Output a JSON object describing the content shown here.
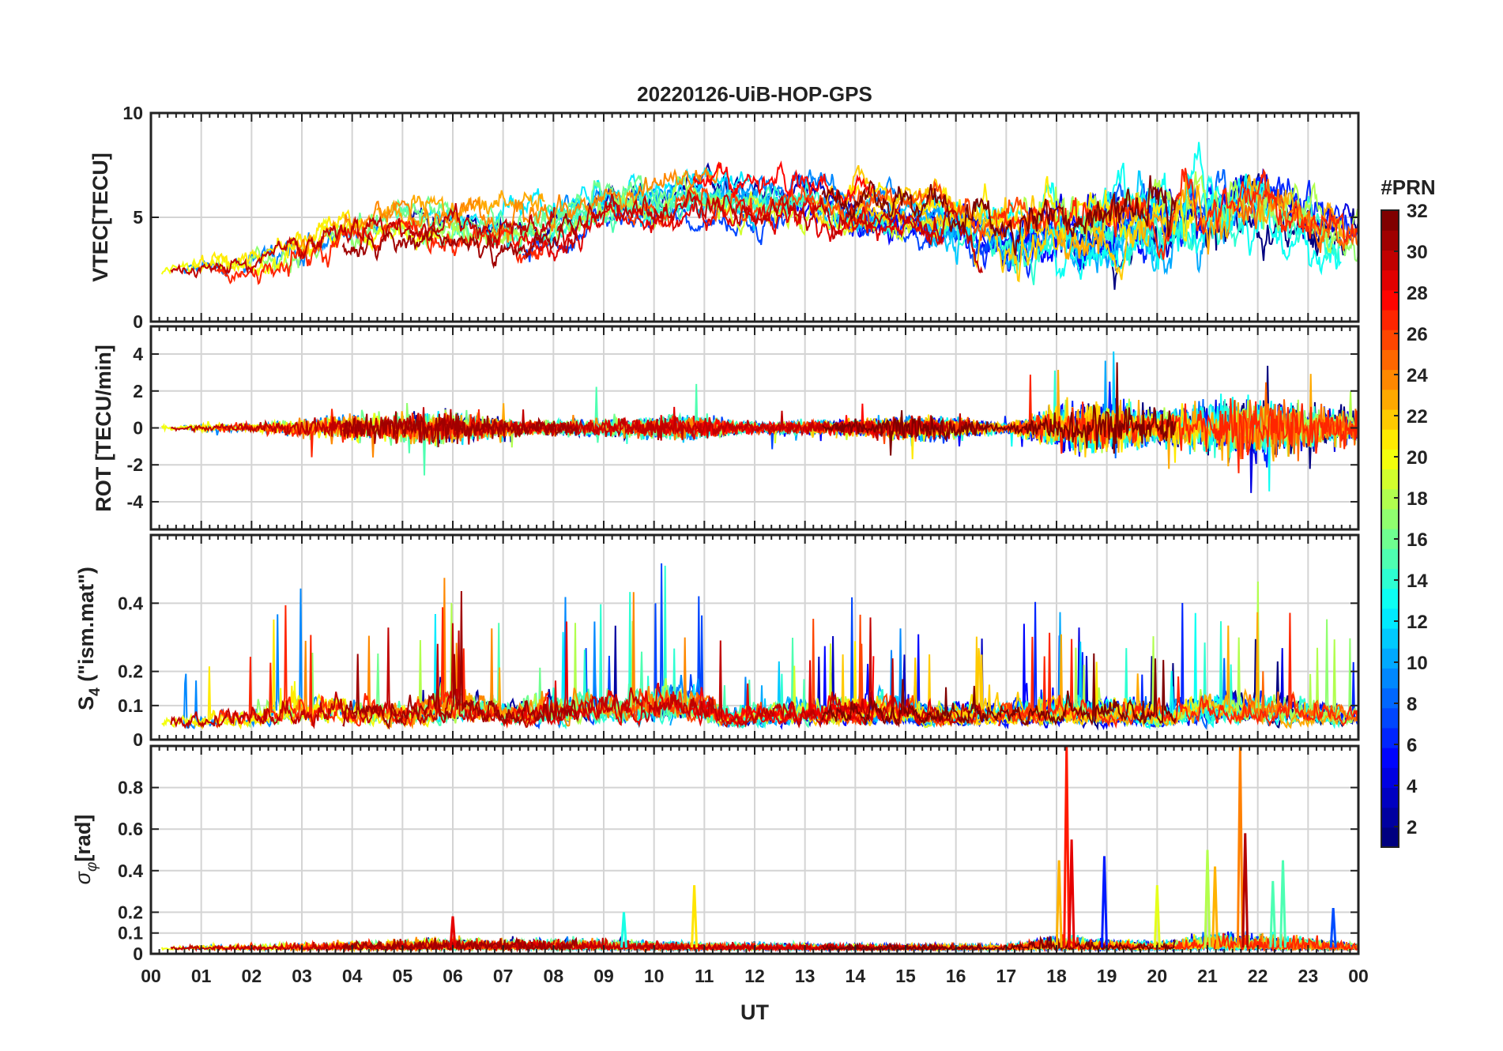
{
  "chart_data": {
    "type": "line",
    "title": "20220126-UiB-HOP-GPS",
    "xlabel": "UT",
    "x_range_hours": [
      0,
      24
    ],
    "x_tick_labels": [
      "00",
      "01",
      "02",
      "03",
      "04",
      "05",
      "06",
      "07",
      "08",
      "09",
      "10",
      "11",
      "12",
      "13",
      "14",
      "15",
      "16",
      "17",
      "18",
      "19",
      "20",
      "21",
      "22",
      "23",
      "00"
    ],
    "grid": true,
    "colorbar": {
      "title": "#PRN",
      "range": [
        1,
        32
      ],
      "tick_labels": [
        "2",
        "4",
        "6",
        "8",
        "10",
        "12",
        "14",
        "16",
        "18",
        "20",
        "22",
        "24",
        "26",
        "28",
        "30",
        "32"
      ],
      "colormap": "jet",
      "placement": "right"
    },
    "panels": [
      {
        "ylabel": "VTEC[TECU]",
        "ylim": [
          0,
          10
        ],
        "y_tick_labels": [
          "0",
          "5",
          "10"
        ],
        "envelope_center": [
          [
            0,
            2.5
          ],
          [
            2,
            2.8
          ],
          [
            3,
            3.6
          ],
          [
            4,
            4.6
          ],
          [
            5,
            4.9
          ],
          [
            6,
            4.5
          ],
          [
            7,
            4.3
          ],
          [
            8,
            4.6
          ],
          [
            9,
            5.6
          ],
          [
            10,
            5.8
          ],
          [
            11,
            6.2
          ],
          [
            12,
            6.0
          ],
          [
            13,
            6.2
          ],
          [
            14,
            5.4
          ],
          [
            15,
            5.4
          ],
          [
            16,
            5.0
          ],
          [
            17,
            4.2
          ],
          [
            18,
            4.6
          ],
          [
            19,
            4.6
          ],
          [
            20,
            4.8
          ],
          [
            21,
            5.2
          ],
          [
            22,
            5.8
          ],
          [
            23,
            4.6
          ],
          [
            24,
            4.0
          ]
        ],
        "envelope_spread": [
          [
            0,
            0.6
          ],
          [
            3,
            1.0
          ],
          [
            6,
            1.0
          ],
          [
            9,
            1.4
          ],
          [
            12,
            1.6
          ],
          [
            15,
            1.5
          ],
          [
            18,
            1.7
          ],
          [
            21,
            1.8
          ],
          [
            24,
            1.2
          ]
        ],
        "noise_level": [
          [
            0,
            0.1
          ],
          [
            3,
            0.3
          ],
          [
            6,
            0.3
          ],
          [
            9,
            0.3
          ],
          [
            12,
            0.3
          ],
          [
            15,
            0.3
          ],
          [
            18,
            0.5
          ],
          [
            21,
            0.6
          ],
          [
            24,
            0.4
          ]
        ]
      },
      {
        "ylabel": "ROT [TECU/min]",
        "ylim": [
          -5.5,
          5.5
        ],
        "y_tick_labels": [
          "-4",
          "-2",
          "0",
          "2",
          "4"
        ],
        "noise_level": [
          [
            0,
            0.1
          ],
          [
            2,
            0.15
          ],
          [
            3,
            0.35
          ],
          [
            4,
            0.5
          ],
          [
            6,
            0.6
          ],
          [
            7.5,
            0.25
          ],
          [
            9,
            0.3
          ],
          [
            10.5,
            0.45
          ],
          [
            12,
            0.2
          ],
          [
            14,
            0.3
          ],
          [
            15.5,
            0.45
          ],
          [
            17,
            0.15
          ],
          [
            18,
            0.7
          ],
          [
            19,
            0.9
          ],
          [
            20,
            0.6
          ],
          [
            21,
            0.9
          ],
          [
            22,
            1.1
          ],
          [
            23,
            0.8
          ],
          [
            24,
            0.6
          ]
        ]
      },
      {
        "ylabel": "S4 (\"ism.mat\")",
        "ylim": [
          0,
          0.6
        ],
        "y_tick_labels": [
          "0",
          "0.1",
          "0.2",
          "0.4"
        ],
        "noise_level": [
          [
            0,
            0.08
          ],
          [
            1,
            0.1
          ],
          [
            2.5,
            0.16
          ],
          [
            3.5,
            0.2
          ],
          [
            5,
            0.14
          ],
          [
            6,
            0.24
          ],
          [
            7,
            0.16
          ],
          [
            8,
            0.2
          ],
          [
            9.5,
            0.2
          ],
          [
            10.5,
            0.28
          ],
          [
            11.5,
            0.12
          ],
          [
            12.5,
            0.16
          ],
          [
            14.5,
            0.2
          ],
          [
            15.5,
            0.14
          ],
          [
            17,
            0.16
          ],
          [
            18,
            0.18
          ],
          [
            19,
            0.18
          ],
          [
            20,
            0.14
          ],
          [
            21,
            0.2
          ],
          [
            22,
            0.2
          ],
          [
            23,
            0.16
          ],
          [
            24,
            0.14
          ]
        ]
      },
      {
        "ylabel": "σφ[rad]",
        "ylim": [
          0,
          1.0
        ],
        "y_tick_labels": [
          "0",
          "0.1",
          "0.2",
          "0.4",
          "0.6",
          "0.8"
        ],
        "noise_level": [
          [
            0,
            0.02
          ],
          [
            3,
            0.04
          ],
          [
            6,
            0.07
          ],
          [
            9,
            0.06
          ],
          [
            11,
            0.04
          ],
          [
            14,
            0.03
          ],
          [
            17,
            0.03
          ],
          [
            18,
            0.08
          ],
          [
            19,
            0.06
          ],
          [
            20,
            0.04
          ],
          [
            21,
            0.1
          ],
          [
            22,
            0.09
          ],
          [
            23,
            0.07
          ],
          [
            24,
            0.04
          ]
        ],
        "spikes": [
          [
            18.2,
            1.0
          ],
          [
            18.05,
            0.45
          ],
          [
            18.3,
            0.55
          ],
          [
            18.95,
            0.47
          ],
          [
            20.0,
            0.33
          ],
          [
            10.8,
            0.33
          ],
          [
            9.4,
            0.2
          ],
          [
            21.0,
            0.5
          ],
          [
            21.15,
            0.42
          ],
          [
            21.65,
            1.0
          ],
          [
            21.75,
            0.58
          ],
          [
            22.3,
            0.35
          ],
          [
            22.5,
            0.45
          ],
          [
            23.5,
            0.22
          ],
          [
            6.0,
            0.18
          ]
        ]
      }
    ]
  }
}
